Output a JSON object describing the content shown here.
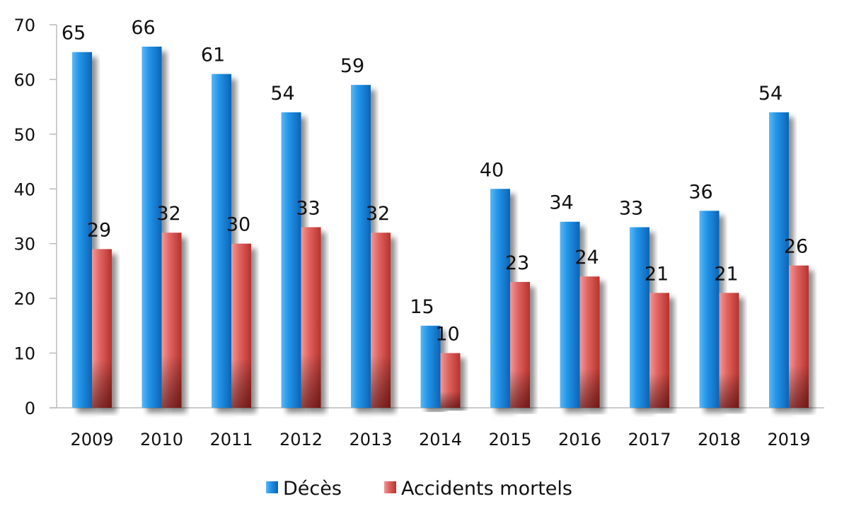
{
  "chart_data": {
    "type": "bar",
    "title": "",
    "xlabel": "",
    "ylabel": "",
    "ylim": [
      0,
      70
    ],
    "yticks": [
      0,
      10,
      20,
      30,
      40,
      50,
      60,
      70
    ],
    "categories": [
      "2009",
      "2010",
      "2011",
      "2012",
      "2013",
      "2014",
      "2015",
      "2016",
      "2017",
      "2018",
      "2019"
    ],
    "series": [
      {
        "name": "Décès",
        "color": "#1a8ae0",
        "values": [
          65,
          66,
          61,
          54,
          59,
          15,
          40,
          34,
          33,
          36,
          54
        ]
      },
      {
        "name": "Accidents mortels",
        "color": "#d9534f",
        "values": [
          29,
          32,
          30,
          33,
          32,
          10,
          23,
          24,
          21,
          21,
          26
        ]
      }
    ],
    "legend_position": "bottom",
    "grid": false
  }
}
